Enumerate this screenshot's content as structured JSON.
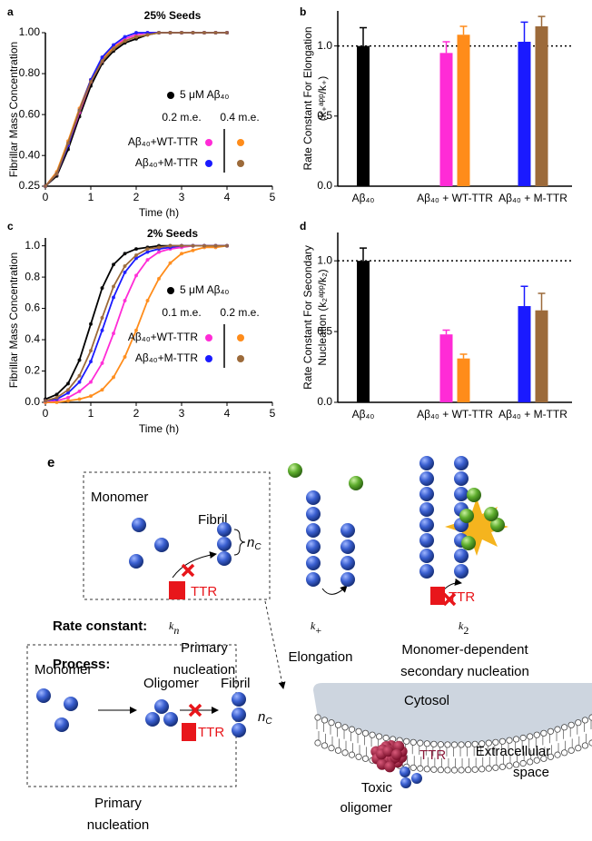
{
  "chart_data": [
    {
      "type": "line",
      "panel": "a",
      "title": "25% Seeds",
      "xlabel": "Time (h)",
      "ylabel": [
        "Fibrillar Mass Concentration"
      ],
      "xlim": [
        0,
        5
      ],
      "xticks": [
        0,
        1,
        2,
        3,
        4,
        5
      ],
      "ylim": [
        0.25,
        1.0
      ],
      "yticks": [
        {
          "value": 0.25,
          "label": "0.25"
        },
        {
          "value": 0.4,
          "label": "0.40"
        },
        {
          "value": 0.6,
          "label": "0.60"
        },
        {
          "value": 0.8,
          "label": "0.80"
        },
        {
          "value": 1.0,
          "label": "1.00"
        }
      ],
      "x": [
        0,
        0.25,
        0.5,
        0.75,
        1,
        1.25,
        1.5,
        1.75,
        2,
        2.25,
        2.5,
        2.75,
        3,
        3.25,
        3.5,
        3.75,
        4
      ],
      "series": [
        {
          "name": "5 μM Aβ₄₀",
          "color": "#000000",
          "values": [
            0.25,
            0.3,
            0.43,
            0.59,
            0.74,
            0.85,
            0.91,
            0.95,
            0.97,
            0.99,
            1.0,
            1.0,
            1.0,
            1.0,
            1.0,
            1.0,
            1.0
          ]
        },
        {
          "name": "Aβ₄₀+WT-TTR",
          "dose": "0.2 m.e.",
          "color": "#ff2bd6",
          "values": [
            0.25,
            0.31,
            0.45,
            0.61,
            0.76,
            0.86,
            0.93,
            0.97,
            0.99,
            1.0,
            1.0,
            1.0,
            1.0,
            1.0,
            1.0,
            1.0,
            1.0
          ]
        },
        {
          "name": "Aβ₄₀+WT-TTR",
          "dose": "0.4 m.e.",
          "color": "#ff8c1a",
          "values": [
            0.25,
            0.32,
            0.47,
            0.63,
            0.77,
            0.87,
            0.93,
            0.96,
            0.98,
            0.99,
            1.0,
            1.0,
            1.0,
            1.0,
            1.0,
            1.0,
            1.0
          ]
        },
        {
          "name": "Aβ₄₀+M-TTR",
          "dose": "0.2 m.e.",
          "color": "#1a1aff",
          "values": [
            0.25,
            0.31,
            0.45,
            0.62,
            0.77,
            0.88,
            0.94,
            0.98,
            1.0,
            1.0,
            1.0,
            1.0,
            1.0,
            1.0,
            1.0,
            1.0,
            1.0
          ]
        },
        {
          "name": "Aβ₄₀+M-TTR",
          "dose": "0.4 m.e.",
          "color": "#9c6a3a",
          "values": [
            0.25,
            0.31,
            0.46,
            0.62,
            0.76,
            0.86,
            0.92,
            0.96,
            0.98,
            0.99,
            1.0,
            1.0,
            1.0,
            1.0,
            1.0,
            1.0,
            1.0
          ]
        }
      ]
    },
    {
      "type": "bar",
      "panel": "b",
      "ylabel": [
        "Rate Constant For Elongation",
        "(k₊ᵃᵖᵖ/k₊)"
      ],
      "categories": [
        "Aβ₄₀",
        "Aβ₄₀ + WT-TTR",
        "Aβ₄₀ + M-TTR"
      ],
      "ylim": [
        0,
        1.25
      ],
      "yticks": [
        {
          "value": 0,
          "label": "0.0"
        },
        {
          "value": 0.5,
          "label": "0.5"
        },
        {
          "value": 1,
          "label": "1.0"
        }
      ],
      "hline": 1,
      "series": [
        {
          "color": "#000000",
          "values": [
            1.0,
            null,
            null
          ],
          "errors": [
            0.13,
            null,
            null
          ]
        },
        {
          "color": "#ff2bd6",
          "values": [
            null,
            0.95,
            null
          ],
          "errors": [
            null,
            0.08,
            null
          ]
        },
        {
          "color": "#ff8c1a",
          "values": [
            null,
            1.08,
            null
          ],
          "errors": [
            null,
            0.06,
            null
          ]
        },
        {
          "color": "#1a1aff",
          "values": [
            null,
            null,
            1.03
          ],
          "errors": [
            null,
            null,
            0.14
          ]
        },
        {
          "color": "#9c6a3a",
          "values": [
            null,
            null,
            1.14
          ],
          "errors": [
            null,
            null,
            0.07
          ]
        }
      ]
    },
    {
      "type": "line",
      "panel": "c",
      "title": "2% Seeds",
      "xlabel": "Time (h)",
      "ylabel": [
        "Fibrillar Mass Concentration"
      ],
      "xlim": [
        0,
        5
      ],
      "xticks": [
        0,
        1,
        2,
        3,
        4,
        5
      ],
      "ylim": [
        0,
        1.05
      ],
      "yticks": [
        {
          "value": 0,
          "label": "0.0"
        },
        {
          "value": 0.2,
          "label": "0.2"
        },
        {
          "value": 0.4,
          "label": "0.4"
        },
        {
          "value": 0.6,
          "label": "0.6"
        },
        {
          "value": 0.8,
          "label": "0.8"
        },
        {
          "value": 1,
          "label": "1.0"
        }
      ],
      "x": [
        0,
        0.25,
        0.5,
        0.75,
        1,
        1.25,
        1.5,
        1.75,
        2,
        2.25,
        2.5,
        2.75,
        3,
        3.25,
        3.5,
        3.75,
        4
      ],
      "series": [
        {
          "name": "5 μM Aβ₄₀",
          "color": "#000000",
          "values": [
            0.02,
            0.05,
            0.12,
            0.27,
            0.5,
            0.73,
            0.88,
            0.95,
            0.98,
            0.99,
            1.0,
            1.0,
            1.0,
            1.0,
            1.0,
            1.0,
            1.0
          ]
        },
        {
          "name": "Aβ₄₀+WT-TTR",
          "dose": "0.1 m.e.",
          "color": "#ff2bd6",
          "values": [
            0.0,
            0.01,
            0.03,
            0.07,
            0.13,
            0.25,
            0.44,
            0.65,
            0.81,
            0.91,
            0.96,
            0.98,
            0.99,
            1.0,
            1.0,
            1.0,
            1.0
          ]
        },
        {
          "name": "Aβ₄₀+WT-TTR",
          "dose": "0.2 m.e.",
          "color": "#ff8c1a",
          "values": [
            0.0,
            0.0,
            0.01,
            0.02,
            0.04,
            0.08,
            0.16,
            0.29,
            0.46,
            0.65,
            0.79,
            0.89,
            0.95,
            0.97,
            0.99,
            0.99,
            1.0
          ]
        },
        {
          "name": "Aβ₄₀+M-TTR",
          "dose": "0.1 m.e.",
          "color": "#1a1aff",
          "values": [
            0.01,
            0.02,
            0.06,
            0.13,
            0.26,
            0.46,
            0.67,
            0.83,
            0.92,
            0.96,
            0.98,
            0.99,
            1.0,
            1.0,
            1.0,
            1.0,
            1.0
          ]
        },
        {
          "name": "Aβ₄₀+M-TTR",
          "dose": "0.2 m.e.",
          "color": "#9c6a3a",
          "values": [
            0.01,
            0.03,
            0.08,
            0.17,
            0.33,
            0.54,
            0.74,
            0.87,
            0.94,
            0.98,
            0.99,
            1.0,
            1.0,
            1.0,
            1.0,
            1.0,
            1.0
          ]
        }
      ]
    },
    {
      "type": "bar",
      "panel": "d",
      "ylabel": [
        "Rate Constant For Secondary",
        "Nucleation (k₂ᵃᵖᵖ/k₂)"
      ],
      "categories": [
        "Aβ₄₀",
        "Aβ₄₀ + WT-TTR",
        "Aβ₄₀ + M-TTR"
      ],
      "ylim": [
        0,
        1.2
      ],
      "yticks": [
        {
          "value": 0,
          "label": "0.0"
        },
        {
          "value": 0.5,
          "label": "0.5"
        },
        {
          "value": 1,
          "label": "1.0"
        }
      ],
      "hline": 1,
      "series": [
        {
          "color": "#000000",
          "values": [
            1.0,
            null,
            null
          ],
          "errors": [
            0.09,
            null,
            null
          ]
        },
        {
          "color": "#ff2bd6",
          "values": [
            null,
            0.48,
            null
          ],
          "errors": [
            null,
            0.03,
            null
          ]
        },
        {
          "color": "#ff8c1a",
          "values": [
            null,
            0.31,
            null
          ],
          "errors": [
            null,
            0.03,
            null
          ]
        },
        {
          "color": "#1a1aff",
          "values": [
            null,
            null,
            0.68
          ],
          "errors": [
            null,
            null,
            0.14
          ]
        },
        {
          "color": "#9c6a3a",
          "values": [
            null,
            null,
            0.65
          ],
          "errors": [
            null,
            null,
            0.12
          ]
        }
      ]
    }
  ],
  "diagram": {
    "panel": "e",
    "top_box": {
      "monomer": "Monomer",
      "fibril": "Fibril",
      "nc": [
        "n",
        "C"
      ],
      "inhibitor": "TTR"
    },
    "secondary_inhibitor": "TTR",
    "rate_constant_label": "Rate constant:",
    "rate_constants": [
      [
        "k",
        "n"
      ],
      [
        "k",
        "+"
      ],
      [
        "k",
        "2"
      ]
    ],
    "process_label": "Process:",
    "processes": [
      [
        "Primary",
        "nucleation"
      ],
      [
        "Elongation"
      ],
      [
        "Monomer-dependent",
        "secondary nucleation"
      ]
    ],
    "bottom_box": {
      "monomer": "Monomer",
      "oligomer": "Oligomer",
      "fibril": "Fibril",
      "nc": [
        "n",
        "C"
      ],
      "inhibitor": "TTR",
      "caption": [
        "Primary",
        "nucleation"
      ]
    },
    "membrane": {
      "cytosol": "Cytosol",
      "extracellular": [
        "Extracellular",
        "space"
      ],
      "ttr": "TTR",
      "toxic_oligomer": [
        "Toxic",
        "oligomer"
      ]
    }
  }
}
